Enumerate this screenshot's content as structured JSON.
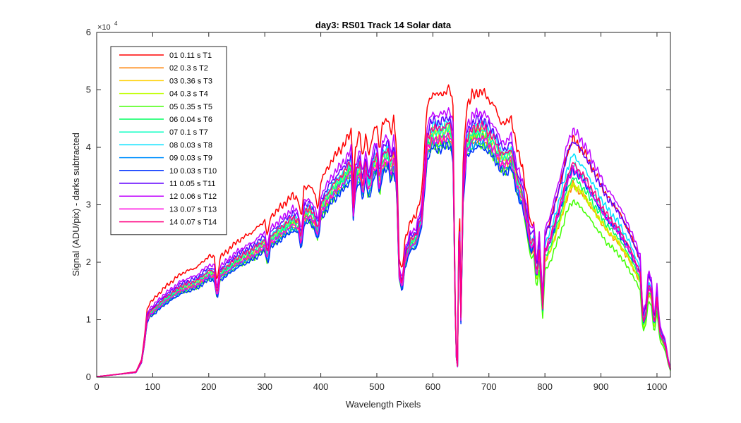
{
  "chart_data": {
    "type": "line",
    "title": "day3: RS01  Track 14 Solar data",
    "xlabel": "Wavelength Pixels",
    "ylabel": "Signal (ADU/pix) - darks subtracted",
    "y_exponent_label": "×10",
    "y_exponent_value": "4",
    "xlim": [
      0,
      1024
    ],
    "ylim": [
      0,
      60000
    ],
    "x_ticks": [
      0,
      100,
      200,
      300,
      400,
      500,
      600,
      700,
      800,
      900,
      1000
    ],
    "x_tick_labels": [
      "0",
      "100",
      "200",
      "300",
      "400",
      "500",
      "600",
      "700",
      "800",
      "900",
      "1000"
    ],
    "y_ticks": [
      0,
      10000,
      20000,
      30000,
      40000,
      50000,
      60000
    ],
    "y_tick_labels": [
      "0",
      "1",
      "2",
      "3",
      "4",
      "5",
      "6"
    ],
    "grid": false,
    "legend_position": "top-left",
    "reference_x": [
      0,
      70,
      80,
      85,
      90,
      95,
      100,
      120,
      150,
      180,
      200,
      210,
      215,
      220,
      230,
      250,
      280,
      300,
      305,
      310,
      330,
      350,
      360,
      365,
      370,
      380,
      390,
      395,
      400,
      420,
      440,
      455,
      458,
      462,
      466,
      470,
      475,
      480,
      485,
      490,
      495,
      500,
      505,
      510,
      515,
      520,
      525,
      530,
      535,
      540,
      545,
      550,
      560,
      570,
      580,
      590,
      600,
      610,
      620,
      630,
      636,
      641,
      644,
      647,
      650,
      654,
      660,
      670,
      680,
      690,
      700,
      710,
      720,
      730,
      740,
      750,
      760,
      770,
      775,
      780,
      785,
      790,
      796,
      800,
      810,
      820,
      830,
      840,
      850,
      860,
      870,
      880,
      890,
      900,
      910,
      920,
      930,
      940,
      950,
      960,
      970,
      975,
      980,
      985,
      990,
      995,
      1000,
      1005,
      1010,
      1015,
      1020,
      1024
    ],
    "reference_values": [
      100,
      800,
      2500,
      5500,
      9500,
      10500,
      10800,
      12500,
      14500,
      15500,
      17000,
      16800,
      13200,
      16800,
      17500,
      19000,
      20500,
      22000,
      19500,
      22500,
      24000,
      25500,
      25000,
      22000,
      26500,
      27000,
      25500,
      23500,
      27500,
      30500,
      32500,
      34500,
      27000,
      32000,
      33500,
      34000,
      30500,
      34500,
      31000,
      32500,
      35000,
      35500,
      31500,
      35500,
      36000,
      36500,
      34000,
      36000,
      33000,
      17000,
      14700,
      19000,
      22000,
      22500,
      26000,
      38000,
      40000,
      39500,
      40000,
      40500,
      38000,
      4000,
      1800,
      28000,
      9500,
      30000,
      38000,
      39500,
      40000,
      40000,
      39000,
      38000,
      36000,
      35500,
      36500,
      32000,
      29500,
      24000,
      21000,
      22000,
      16000,
      20000,
      11000,
      20000,
      22000,
      25000,
      28000,
      31500,
      33500,
      32500,
      31500,
      30000,
      28500,
      27000,
      25500,
      24500,
      23500,
      22000,
      20500,
      18500,
      16500,
      8500,
      10000,
      14500,
      13500,
      8000,
      12500,
      7000,
      6000,
      5000,
      2500,
      1200
    ],
    "series": [
      {
        "name": "01 0.11 s T1",
        "color": "#ff0000",
        "scale": 1.24,
        "noise": 1,
        "n_tail": 1.0
      },
      {
        "name": "02 0.3 s T2",
        "color": "#ff8000",
        "scale": 1.03,
        "noise": 2,
        "n_tail": 0.97
      },
      {
        "name": "03 0.36 s T3",
        "color": "#ffd000",
        "scale": 1.06,
        "noise": 3,
        "n_tail": 0.95
      },
      {
        "name": "04 0.3 s T4",
        "color": "#c0ff00",
        "scale": 1.08,
        "noise": 4,
        "n_tail": 0.93
      },
      {
        "name": "05 0.35 s T5",
        "color": "#40ff00",
        "scale": 1.01,
        "noise": 5,
        "n_tail": 0.91
      },
      {
        "name": "06 0.04 s T6",
        "color": "#00ff60",
        "scale": 1.05,
        "noise": 6,
        "n_tail": 0.99
      },
      {
        "name": "07 0.1 s T7",
        "color": "#00ffc0",
        "scale": 1.07,
        "noise": 7,
        "n_tail": 1.03
      },
      {
        "name": "08 0.03 s T8",
        "color": "#00e0ff",
        "scale": 1.1,
        "noise": 8,
        "n_tail": 1.05
      },
      {
        "name": "09 0.03 s T9",
        "color": "#0090ff",
        "scale": 1.02,
        "noise": 9,
        "n_tail": 1.06
      },
      {
        "name": "10 0.03 s T10",
        "color": "#0030ff",
        "scale": 1.0,
        "noise": 10,
        "n_tail": 1.08
      },
      {
        "name": "11 0.05 s T11",
        "color": "#6000ff",
        "scale": 1.12,
        "noise": 11,
        "n_tail": 1.1
      },
      {
        "name": "12 0.06 s T12",
        "color": "#c000ff",
        "scale": 1.15,
        "noise": 12,
        "n_tail": 1.12
      },
      {
        "name": "13 0.07 s T13",
        "color": "#ff00e0",
        "scale": 1.04,
        "noise": 13,
        "n_tail": 1.04
      },
      {
        "name": "14 0.07 s T14",
        "color": "#ff0080",
        "scale": 1.09,
        "noise": 14,
        "n_tail": 1.02
      }
    ]
  }
}
